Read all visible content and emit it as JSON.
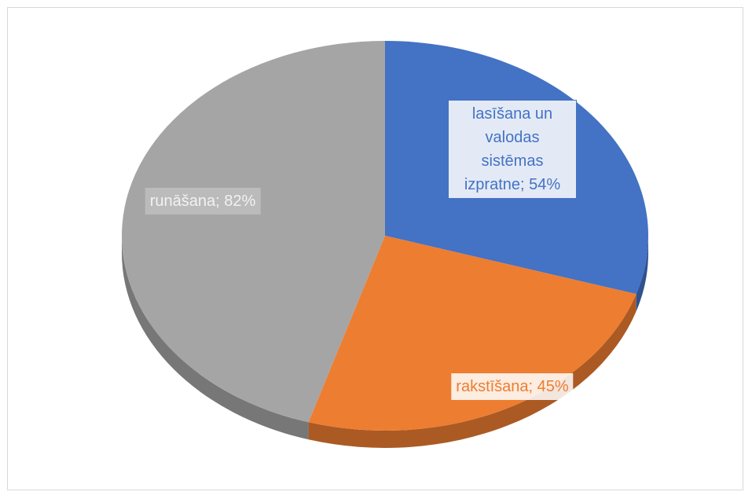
{
  "chart_data": {
    "type": "pie",
    "values": [
      54,
      45,
      82
    ],
    "value_labels": [
      "lasīšana un valodas sistēmas izpratne; 54%",
      "rakstīšana; 45%",
      "runāšana; 82%"
    ],
    "colors": [
      "#4472c4",
      "#ed7d31",
      "#a5a5a5"
    ],
    "start_angle": 0,
    "direction": "clockwise"
  }
}
